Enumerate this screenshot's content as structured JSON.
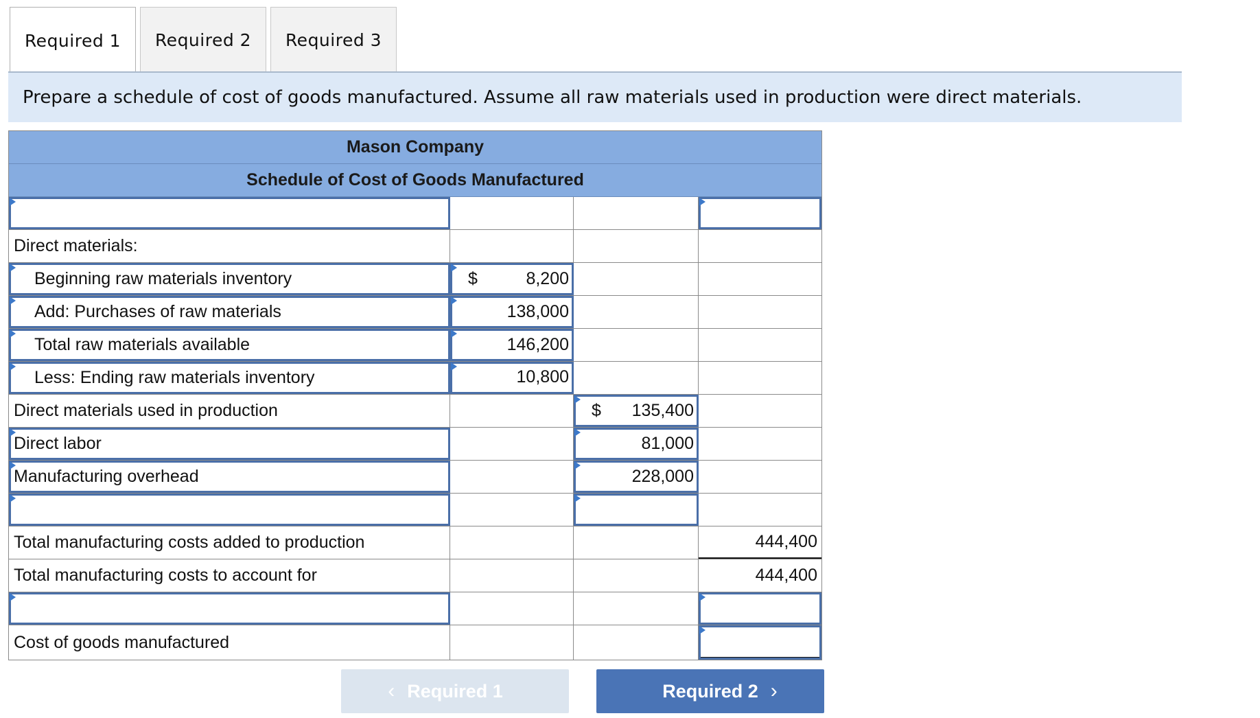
{
  "tabs": [
    "Required 1",
    "Required 2",
    "Required 3"
  ],
  "instruction": "Prepare a schedule of cost of goods manufactured. Assume all raw materials used in production were direct materials.",
  "schedule": {
    "company": "Mason Company",
    "title": "Schedule of Cost of Goods Manufactured",
    "rows": {
      "dm_header": "Direct materials:",
      "beg_inv": {
        "label": "Beginning raw materials inventory",
        "dollar": "$",
        "value": "8,200"
      },
      "purchases": {
        "label": "Add: Purchases of raw materials",
        "value": "138,000"
      },
      "total_avail": {
        "label": "Total raw materials available",
        "value": "146,200"
      },
      "end_inv": {
        "label": "Less: Ending raw materials inventory",
        "value": "10,800"
      },
      "dm_used": {
        "label": "Direct materials used in production",
        "dollar": "$",
        "value": "135,400"
      },
      "dl": {
        "label": "Direct labor",
        "value": "81,000"
      },
      "moh": {
        "label": "Manufacturing overhead",
        "value": "228,000"
      },
      "total_added": {
        "label": "Total manufacturing costs added to production",
        "value": "444,400"
      },
      "total_account": {
        "label": "Total manufacturing costs to account for",
        "value": "444,400"
      },
      "cogm": {
        "label": "Cost of goods manufactured"
      }
    }
  },
  "nav": {
    "prev": "Required 1",
    "next": "Required 2",
    "prev_icon": "chevron-left-icon",
    "next_icon": "chevron-right-icon"
  },
  "colors": {
    "header_blue": "#86ace0",
    "instruction_bg": "#dde9f7",
    "next_button": "#4a74b6",
    "prev_button": "#dce5ef"
  }
}
